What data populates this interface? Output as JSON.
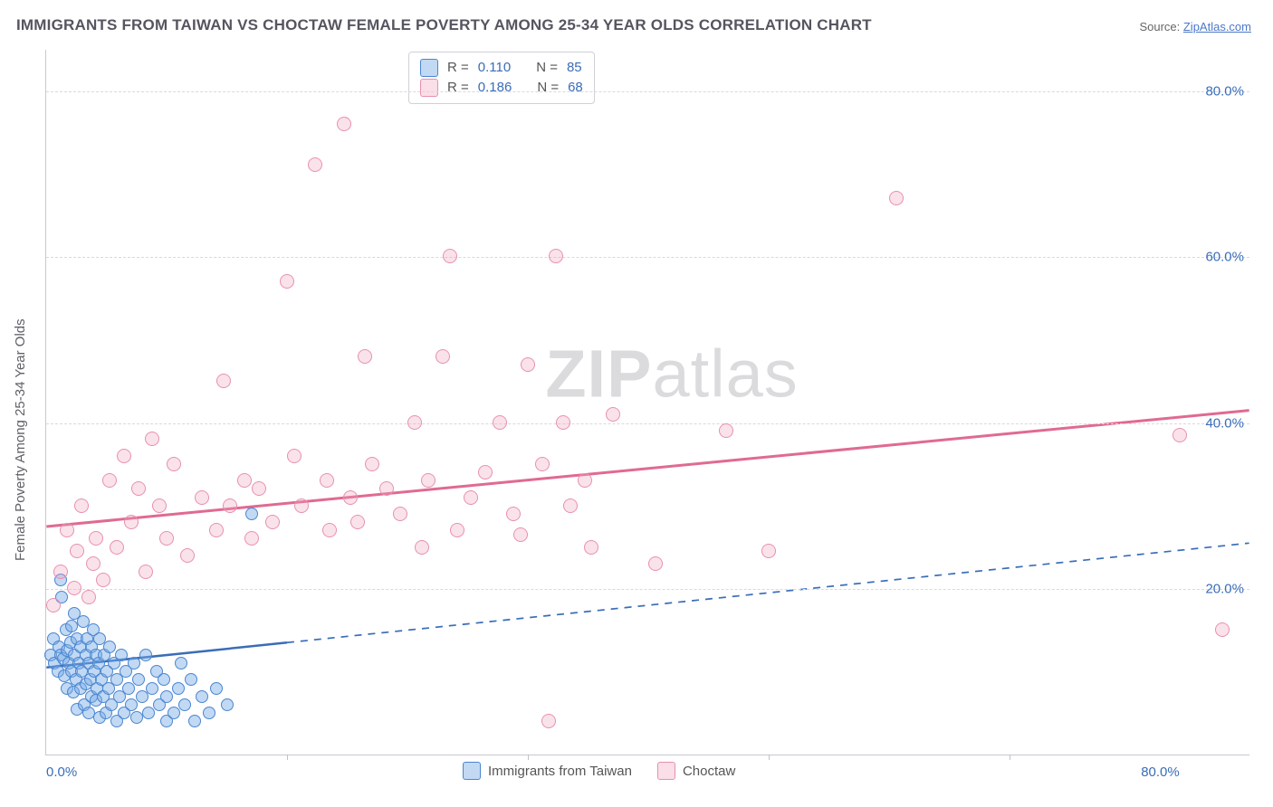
{
  "title": "IMMIGRANTS FROM TAIWAN VS CHOCTAW FEMALE POVERTY AMONG 25-34 YEAR OLDS CORRELATION CHART",
  "source": {
    "prefix": "Source: ",
    "name": "ZipAtlas.com"
  },
  "ylabel": "Female Poverty Among 25-34 Year Olds",
  "watermark": {
    "bold": "ZIP",
    "rest": "atlas"
  },
  "chart": {
    "type": "scatter",
    "xlim": [
      0,
      85
    ],
    "ylim": [
      0,
      85
    ],
    "xtick_labels": {
      "0": "0.0%",
      "80": "80.0%"
    },
    "ytick_positions": [
      20,
      40,
      60,
      80
    ],
    "ytick_labels": [
      "20.0%",
      "40.0%",
      "60.0%",
      "80.0%"
    ],
    "vtick_positions": [
      17,
      34,
      51,
      68
    ],
    "grid_color": "#d8d8e0",
    "axis_color": "#c8c8d0",
    "background": "#ffffff",
    "series": [
      {
        "name": "Immigrants from Taiwan",
        "color_fill": "rgba(120,170,230,0.45)",
        "color_stroke": "#4a86d0",
        "marker_radius": 7,
        "R": "0.110",
        "N": "85",
        "trend": {
          "y_at_x0": 10.5,
          "y_at_xmax": 25.5,
          "style": "solid-then-dashed",
          "solid_until_x": 17,
          "width": 2.5,
          "color": "#3a6db8"
        },
        "points": [
          [
            0.3,
            12
          ],
          [
            0.5,
            14
          ],
          [
            0.6,
            11
          ],
          [
            0.8,
            10
          ],
          [
            0.9,
            13
          ],
          [
            1.0,
            12
          ],
          [
            1.1,
            19
          ],
          [
            1.2,
            11.5
          ],
          [
            1.3,
            9.5
          ],
          [
            1.4,
            15
          ],
          [
            1.5,
            8
          ],
          [
            1.5,
            12.5
          ],
          [
            1.6,
            11
          ],
          [
            1.7,
            13.5
          ],
          [
            1.8,
            10
          ],
          [
            1.8,
            15.5
          ],
          [
            1.9,
            7.5
          ],
          [
            2.0,
            12
          ],
          [
            2.0,
            17
          ],
          [
            2.1,
            9
          ],
          [
            2.2,
            14
          ],
          [
            2.2,
            5.5
          ],
          [
            2.3,
            11
          ],
          [
            2.4,
            8
          ],
          [
            2.4,
            13
          ],
          [
            2.5,
            10
          ],
          [
            2.6,
            16
          ],
          [
            2.7,
            6
          ],
          [
            2.8,
            12
          ],
          [
            2.8,
            8.5
          ],
          [
            2.9,
            14
          ],
          [
            3.0,
            11
          ],
          [
            3.0,
            5
          ],
          [
            3.1,
            9
          ],
          [
            3.2,
            13
          ],
          [
            3.2,
            7
          ],
          [
            3.3,
            15
          ],
          [
            3.4,
            10
          ],
          [
            3.5,
            6.5
          ],
          [
            3.5,
            12
          ],
          [
            3.6,
            8
          ],
          [
            3.7,
            11
          ],
          [
            3.8,
            4.5
          ],
          [
            3.8,
            14
          ],
          [
            3.9,
            9
          ],
          [
            4.0,
            7
          ],
          [
            4.1,
            12
          ],
          [
            4.2,
            5
          ],
          [
            4.3,
            10
          ],
          [
            4.4,
            8
          ],
          [
            4.5,
            13
          ],
          [
            4.6,
            6
          ],
          [
            4.8,
            11
          ],
          [
            5.0,
            9
          ],
          [
            5.0,
            4
          ],
          [
            5.2,
            7
          ],
          [
            5.3,
            12
          ],
          [
            5.5,
            5
          ],
          [
            5.6,
            10
          ],
          [
            5.8,
            8
          ],
          [
            6.0,
            6
          ],
          [
            6.2,
            11
          ],
          [
            6.4,
            4.5
          ],
          [
            6.5,
            9
          ],
          [
            6.8,
            7
          ],
          [
            7.0,
            12
          ],
          [
            7.2,
            5
          ],
          [
            7.5,
            8
          ],
          [
            7.8,
            10
          ],
          [
            8.0,
            6
          ],
          [
            8.3,
            9
          ],
          [
            8.5,
            4
          ],
          [
            8.5,
            7
          ],
          [
            9.0,
            5
          ],
          [
            9.3,
            8
          ],
          [
            9.5,
            11
          ],
          [
            9.8,
            6
          ],
          [
            10.2,
            9
          ],
          [
            10.5,
            4
          ],
          [
            11.0,
            7
          ],
          [
            11.5,
            5
          ],
          [
            12.0,
            8
          ],
          [
            12.8,
            6
          ],
          [
            14.5,
            29
          ],
          [
            1.0,
            21
          ]
        ]
      },
      {
        "name": "Choctaw",
        "color_fill": "rgba(240,160,190,0.30)",
        "color_stroke": "#e890ae",
        "marker_radius": 8,
        "R": "0.186",
        "N": "68",
        "trend": {
          "y_at_x0": 27.5,
          "y_at_xmax": 41.5,
          "style": "solid",
          "width": 3,
          "color": "#e06a92"
        },
        "points": [
          [
            0.5,
            18
          ],
          [
            1.0,
            22
          ],
          [
            1.5,
            27
          ],
          [
            2.0,
            20
          ],
          [
            2.2,
            24.5
          ],
          [
            2.5,
            30
          ],
          [
            3.0,
            19
          ],
          [
            3.3,
            23
          ],
          [
            3.5,
            26
          ],
          [
            4.0,
            21
          ],
          [
            4.5,
            33
          ],
          [
            5.0,
            25
          ],
          [
            5.5,
            36
          ],
          [
            6.0,
            28
          ],
          [
            6.5,
            32
          ],
          [
            7.0,
            22
          ],
          [
            7.5,
            38
          ],
          [
            8.0,
            30
          ],
          [
            8.5,
            26
          ],
          [
            9.0,
            35
          ],
          [
            10,
            24
          ],
          [
            11,
            31
          ],
          [
            12,
            27
          ],
          [
            12.5,
            45
          ],
          [
            13,
            30
          ],
          [
            14,
            33
          ],
          [
            14.5,
            26
          ],
          [
            15,
            32
          ],
          [
            16,
            28
          ],
          [
            17,
            57
          ],
          [
            17.5,
            36
          ],
          [
            18,
            30
          ],
          [
            19,
            71
          ],
          [
            19.8,
            33
          ],
          [
            20,
            27
          ],
          [
            21,
            76
          ],
          [
            21.5,
            31
          ],
          [
            22,
            28
          ],
          [
            22.5,
            48
          ],
          [
            23,
            35
          ],
          [
            24,
            32
          ],
          [
            25,
            29
          ],
          [
            26,
            40
          ],
          [
            26.5,
            25
          ],
          [
            27,
            33
          ],
          [
            28,
            48
          ],
          [
            28.5,
            60
          ],
          [
            29,
            27
          ],
          [
            30,
            31
          ],
          [
            31,
            34
          ],
          [
            32,
            40
          ],
          [
            33,
            29
          ],
          [
            33.5,
            26.5
          ],
          [
            34,
            47
          ],
          [
            35,
            35
          ],
          [
            35.5,
            4
          ],
          [
            36,
            60
          ],
          [
            36.5,
            40
          ],
          [
            37,
            30
          ],
          [
            38,
            33
          ],
          [
            38.5,
            25
          ],
          [
            40,
            41
          ],
          [
            43,
            23
          ],
          [
            48,
            39
          ],
          [
            51,
            24.5
          ],
          [
            60,
            67
          ],
          [
            80,
            38.5
          ],
          [
            83,
            15
          ]
        ]
      }
    ],
    "legend_top_layout": {
      "R_label": "R =",
      "N_label": "N ="
    }
  }
}
